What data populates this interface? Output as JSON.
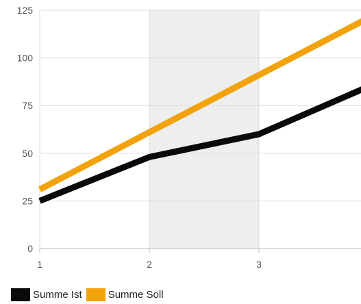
{
  "chart_data": {
    "type": "line",
    "x": [
      1,
      2,
      3,
      4
    ],
    "xticks": [
      "1",
      "2",
      "3"
    ],
    "xlim": [
      1,
      4
    ],
    "ylim": [
      0,
      125
    ],
    "yticks": [
      0,
      25,
      50,
      75,
      100,
      125
    ],
    "grid": true,
    "shaded_x_range": [
      2,
      3
    ],
    "legend_position": "bottom-left",
    "series": [
      {
        "name": "Summe Ist",
        "color": "#0a0a0a",
        "values": [
          25,
          48,
          60,
          85
        ]
      },
      {
        "name": "Summe Soll",
        "color": "#f2a20a",
        "values": [
          31,
          61,
          91,
          121
        ]
      }
    ],
    "colors": {
      "grid": "#dcdcdc",
      "band": "#eeeeee",
      "tick_text": "#555555"
    }
  }
}
